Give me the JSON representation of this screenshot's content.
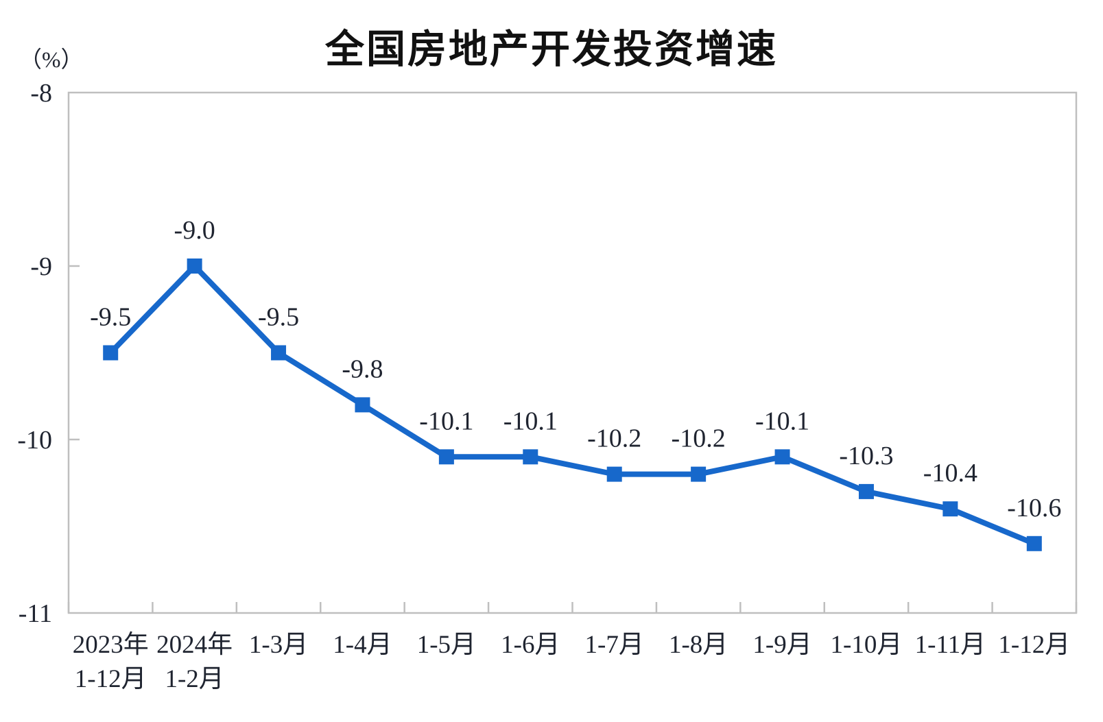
{
  "title": "全国房地产开发投资增速",
  "unit_label": "（%）",
  "chart_data": {
    "type": "line",
    "title": "全国房地产开发投资增速",
    "ylabel_unit": "（%）",
    "ylim": [
      -11,
      -8
    ],
    "grid": "off",
    "legend": "none",
    "line_color": "#1768CB",
    "axis_color": "#BFBFBF",
    "text_color": "#1F2430",
    "marker": "square",
    "y_ticks": [
      {
        "value": -8,
        "label": "-8"
      },
      {
        "value": -9,
        "label": "-9"
      },
      {
        "value": -10,
        "label": "-10"
      },
      {
        "value": -11,
        "label": "-11"
      }
    ],
    "categories": [
      {
        "line1": "2023年",
        "line2": "1-12月"
      },
      {
        "line1": "2024年",
        "line2": "1-2月"
      },
      {
        "line1": "1-3月"
      },
      {
        "line1": "1-4月"
      },
      {
        "line1": "1-5月"
      },
      {
        "line1": "1-6月"
      },
      {
        "line1": "1-7月"
      },
      {
        "line1": "1-8月"
      },
      {
        "line1": "1-9月"
      },
      {
        "line1": "1-10月"
      },
      {
        "line1": "1-11月"
      },
      {
        "line1": "1-12月"
      }
    ],
    "series": [
      {
        "name": "全国房地产开发投资增速",
        "values": [
          -9.5,
          -9.0,
          -9.5,
          -9.8,
          -10.1,
          -10.1,
          -10.2,
          -10.2,
          -10.1,
          -10.3,
          -10.4,
          -10.6
        ]
      }
    ],
    "data_labels": [
      "-9.5",
      "-9.0",
      "-9.5",
      "-9.8",
      "-10.1",
      "-10.1",
      "-10.2",
      "-10.2",
      "-10.1",
      "-10.3",
      "-10.4",
      "-10.6"
    ]
  }
}
